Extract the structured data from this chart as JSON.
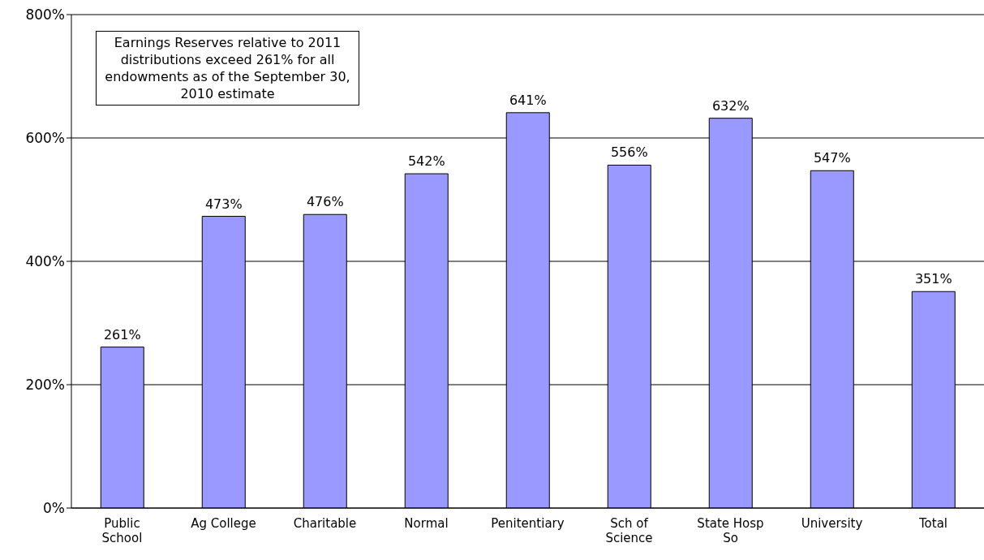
{
  "chart_data": {
    "type": "bar",
    "categories": [
      "Public School",
      "Ag College",
      "Charitable",
      "Normal",
      "Penitentiary",
      "Sch of Science",
      "State Hosp So",
      "University",
      "Total"
    ],
    "values": [
      261,
      473,
      476,
      542,
      641,
      556,
      632,
      547,
      351
    ],
    "value_labels": [
      "261%",
      "473%",
      "476%",
      "542%",
      "641%",
      "556%",
      "632%",
      "547%",
      "351%"
    ],
    "color": "#9999ff",
    "ylim": [
      0,
      800
    ],
    "yticks": [
      {
        "value": 0,
        "label": "0%"
      },
      {
        "value": 200,
        "label": "200%"
      },
      {
        "value": 400,
        "label": "400%"
      },
      {
        "value": 600,
        "label": "600%"
      },
      {
        "value": 800,
        "label": "800%"
      }
    ],
    "grid": "y",
    "legend": false,
    "annotations": [
      "Earnings Reserves relative to 2011 distributions exceed 261% for all endowments as of the September 30, 2010 estimate"
    ]
  }
}
